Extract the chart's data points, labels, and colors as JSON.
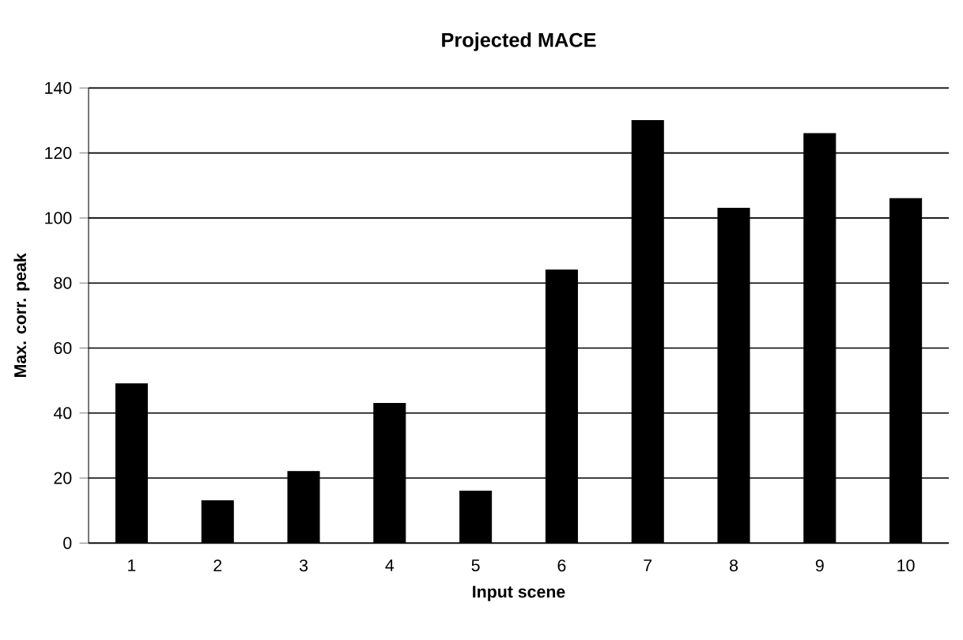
{
  "chart_data": {
    "type": "bar",
    "title": "Projected MACE",
    "xlabel": "Input scene",
    "ylabel": "Max. corr. peak",
    "categories": [
      "1",
      "2",
      "3",
      "4",
      "5",
      "6",
      "7",
      "8",
      "9",
      "10"
    ],
    "values": [
      49,
      13,
      22,
      43,
      16,
      84,
      130,
      103,
      126,
      106
    ],
    "color": "#000000",
    "ylim": [
      0,
      140
    ],
    "yticks": [
      0,
      20,
      40,
      60,
      80,
      100,
      120,
      140
    ],
    "grid": "y"
  }
}
